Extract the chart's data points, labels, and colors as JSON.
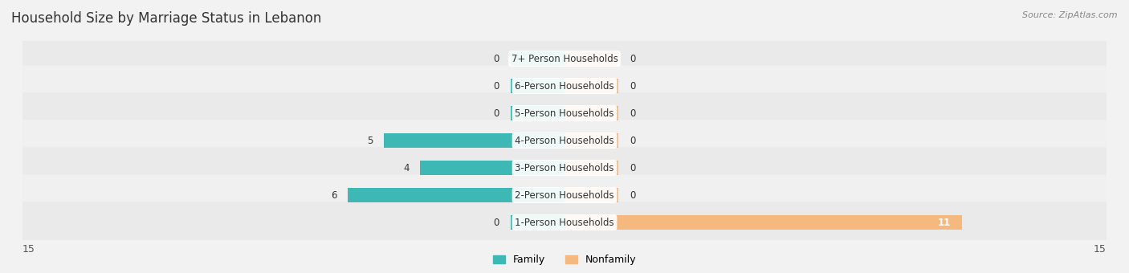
{
  "title": "Household Size by Marriage Status in Lebanon",
  "source": "Source: ZipAtlas.com",
  "categories": [
    "7+ Person Households",
    "6-Person Households",
    "5-Person Households",
    "4-Person Households",
    "3-Person Households",
    "2-Person Households",
    "1-Person Households"
  ],
  "family_values": [
    0,
    0,
    0,
    5,
    4,
    6,
    0
  ],
  "nonfamily_values": [
    0,
    0,
    0,
    0,
    0,
    0,
    11
  ],
  "family_color": "#3db8b5",
  "nonfamily_color": "#f5b97f",
  "xlim_left": -15,
  "xlim_right": 15,
  "bar_height": 0.52,
  "stub_size": 1.5,
  "title_fontsize": 12,
  "label_fontsize": 8.5,
  "tick_fontsize": 9,
  "source_fontsize": 8
}
